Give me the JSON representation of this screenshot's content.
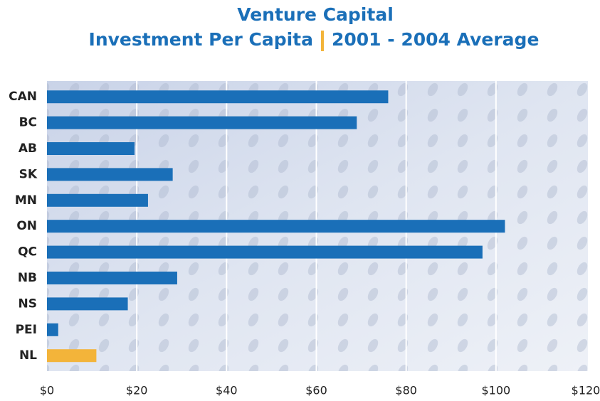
{
  "chart_data": {
    "type": "barh",
    "title": "Venture Capital",
    "subtitle": [
      "Investment Per Capita",
      "2001 - 2004 Average"
    ],
    "categories": [
      "CAN",
      "BC",
      "AB",
      "SK",
      "MN",
      "ON",
      "QC",
      "NB",
      "NS",
      "PEI",
      "NL"
    ],
    "values": [
      76,
      69,
      19.5,
      28,
      22.5,
      102,
      97,
      29,
      18,
      2.5,
      11
    ],
    "colors": [
      "#1a6fb8",
      "#1a6fb8",
      "#1a6fb8",
      "#1a6fb8",
      "#1a6fb8",
      "#1a6fb8",
      "#1a6fb8",
      "#1a6fb8",
      "#1a6fb8",
      "#1a6fb8",
      "#f3b43a"
    ],
    "xlim": [
      0,
      120
    ],
    "xticks": [
      {
        "value": 0,
        "label": "$0"
      },
      {
        "value": 20,
        "label": "$20"
      },
      {
        "value": 40,
        "label": "$40"
      },
      {
        "value": 60,
        "label": "$60"
      },
      {
        "value": 80,
        "label": "$80"
      },
      {
        "value": 100,
        "label": "$100"
      },
      {
        "value": 120,
        "label": "$120"
      }
    ],
    "grid": true
  }
}
